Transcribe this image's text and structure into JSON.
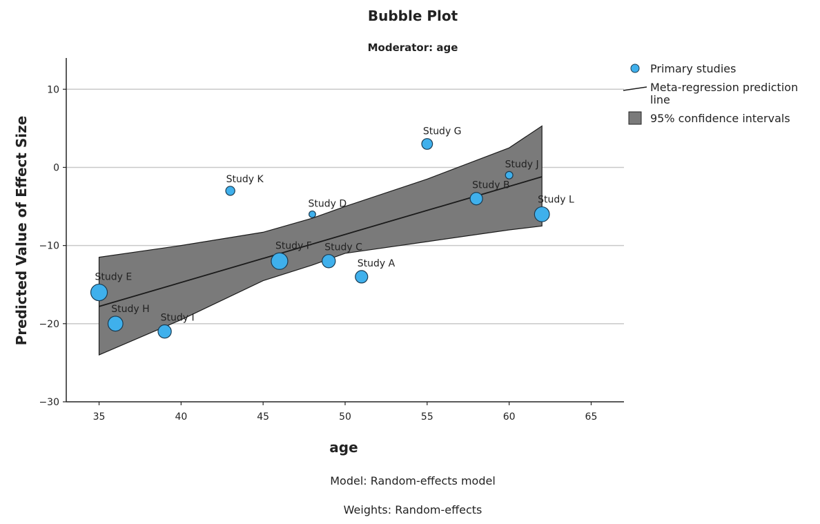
{
  "chart_data": {
    "type": "scatter",
    "title": "Bubble Plot",
    "subtitle": "Moderator: age",
    "xlabel": "age",
    "ylabel": "Predicted Value of Effect Size",
    "xlim": [
      33,
      67
    ],
    "ylim": [
      -30,
      14
    ],
    "xticks": [
      35,
      40,
      45,
      50,
      55,
      60,
      65
    ],
    "yticks": [
      -30,
      -20,
      -10,
      0,
      10
    ],
    "grid": "horizontal",
    "legend_placement": "top-right",
    "legend": {
      "points": "Primary studies",
      "line": "Meta-regression prediction line",
      "band": "95% confidence intervals"
    },
    "footnotes": [
      "Model: Random-effects model",
      "Weights: Random-effects"
    ],
    "colors": {
      "bubble": "#3fb0ec",
      "band": "#7a7a7a",
      "line": "#1a1a1a",
      "grid": "#c8c8c8"
    },
    "points": [
      {
        "label": "Study E",
        "x": 35,
        "y": -16,
        "size": 3
      },
      {
        "label": "Study H",
        "x": 36,
        "y": -20,
        "size": 2.6
      },
      {
        "label": "Study I",
        "x": 39,
        "y": -21,
        "size": 2.2
      },
      {
        "label": "Study K",
        "x": 43,
        "y": -3,
        "size": 1.2
      },
      {
        "label": "Study F",
        "x": 46,
        "y": -12,
        "size": 3
      },
      {
        "label": "Study D",
        "x": 48,
        "y": -6,
        "size": 0.6
      },
      {
        "label": "Study C",
        "x": 49,
        "y": -12,
        "size": 2.2
      },
      {
        "label": "Study A",
        "x": 51,
        "y": -14,
        "size": 2
      },
      {
        "label": "Study G",
        "x": 55,
        "y": 3,
        "size": 1.6
      },
      {
        "label": "Study B",
        "x": 58,
        "y": -4,
        "size": 2
      },
      {
        "label": "Study J",
        "x": 60,
        "y": -1,
        "size": 0.8
      },
      {
        "label": "Study L",
        "x": 62,
        "y": -6,
        "size": 2.6
      }
    ],
    "regression_line": {
      "x": [
        35,
        62
      ],
      "y": [
        -17.8,
        -1.2
      ]
    },
    "ci_upper": [
      {
        "x": 35,
        "y": -11.5
      },
      {
        "x": 40,
        "y": -10
      },
      {
        "x": 45,
        "y": -8.3
      },
      {
        "x": 48,
        "y": -6.5
      },
      {
        "x": 50,
        "y": -5
      },
      {
        "x": 55,
        "y": -1.5
      },
      {
        "x": 60,
        "y": 2.5
      },
      {
        "x": 62,
        "y": 5.3
      }
    ],
    "ci_lower": [
      {
        "x": 35,
        "y": -24
      },
      {
        "x": 40,
        "y": -19.5
      },
      {
        "x": 45,
        "y": -14.5
      },
      {
        "x": 48,
        "y": -12.5
      },
      {
        "x": 50,
        "y": -11
      },
      {
        "x": 55,
        "y": -9.5
      },
      {
        "x": 60,
        "y": -8
      },
      {
        "x": 62,
        "y": -7.5
      }
    ]
  }
}
